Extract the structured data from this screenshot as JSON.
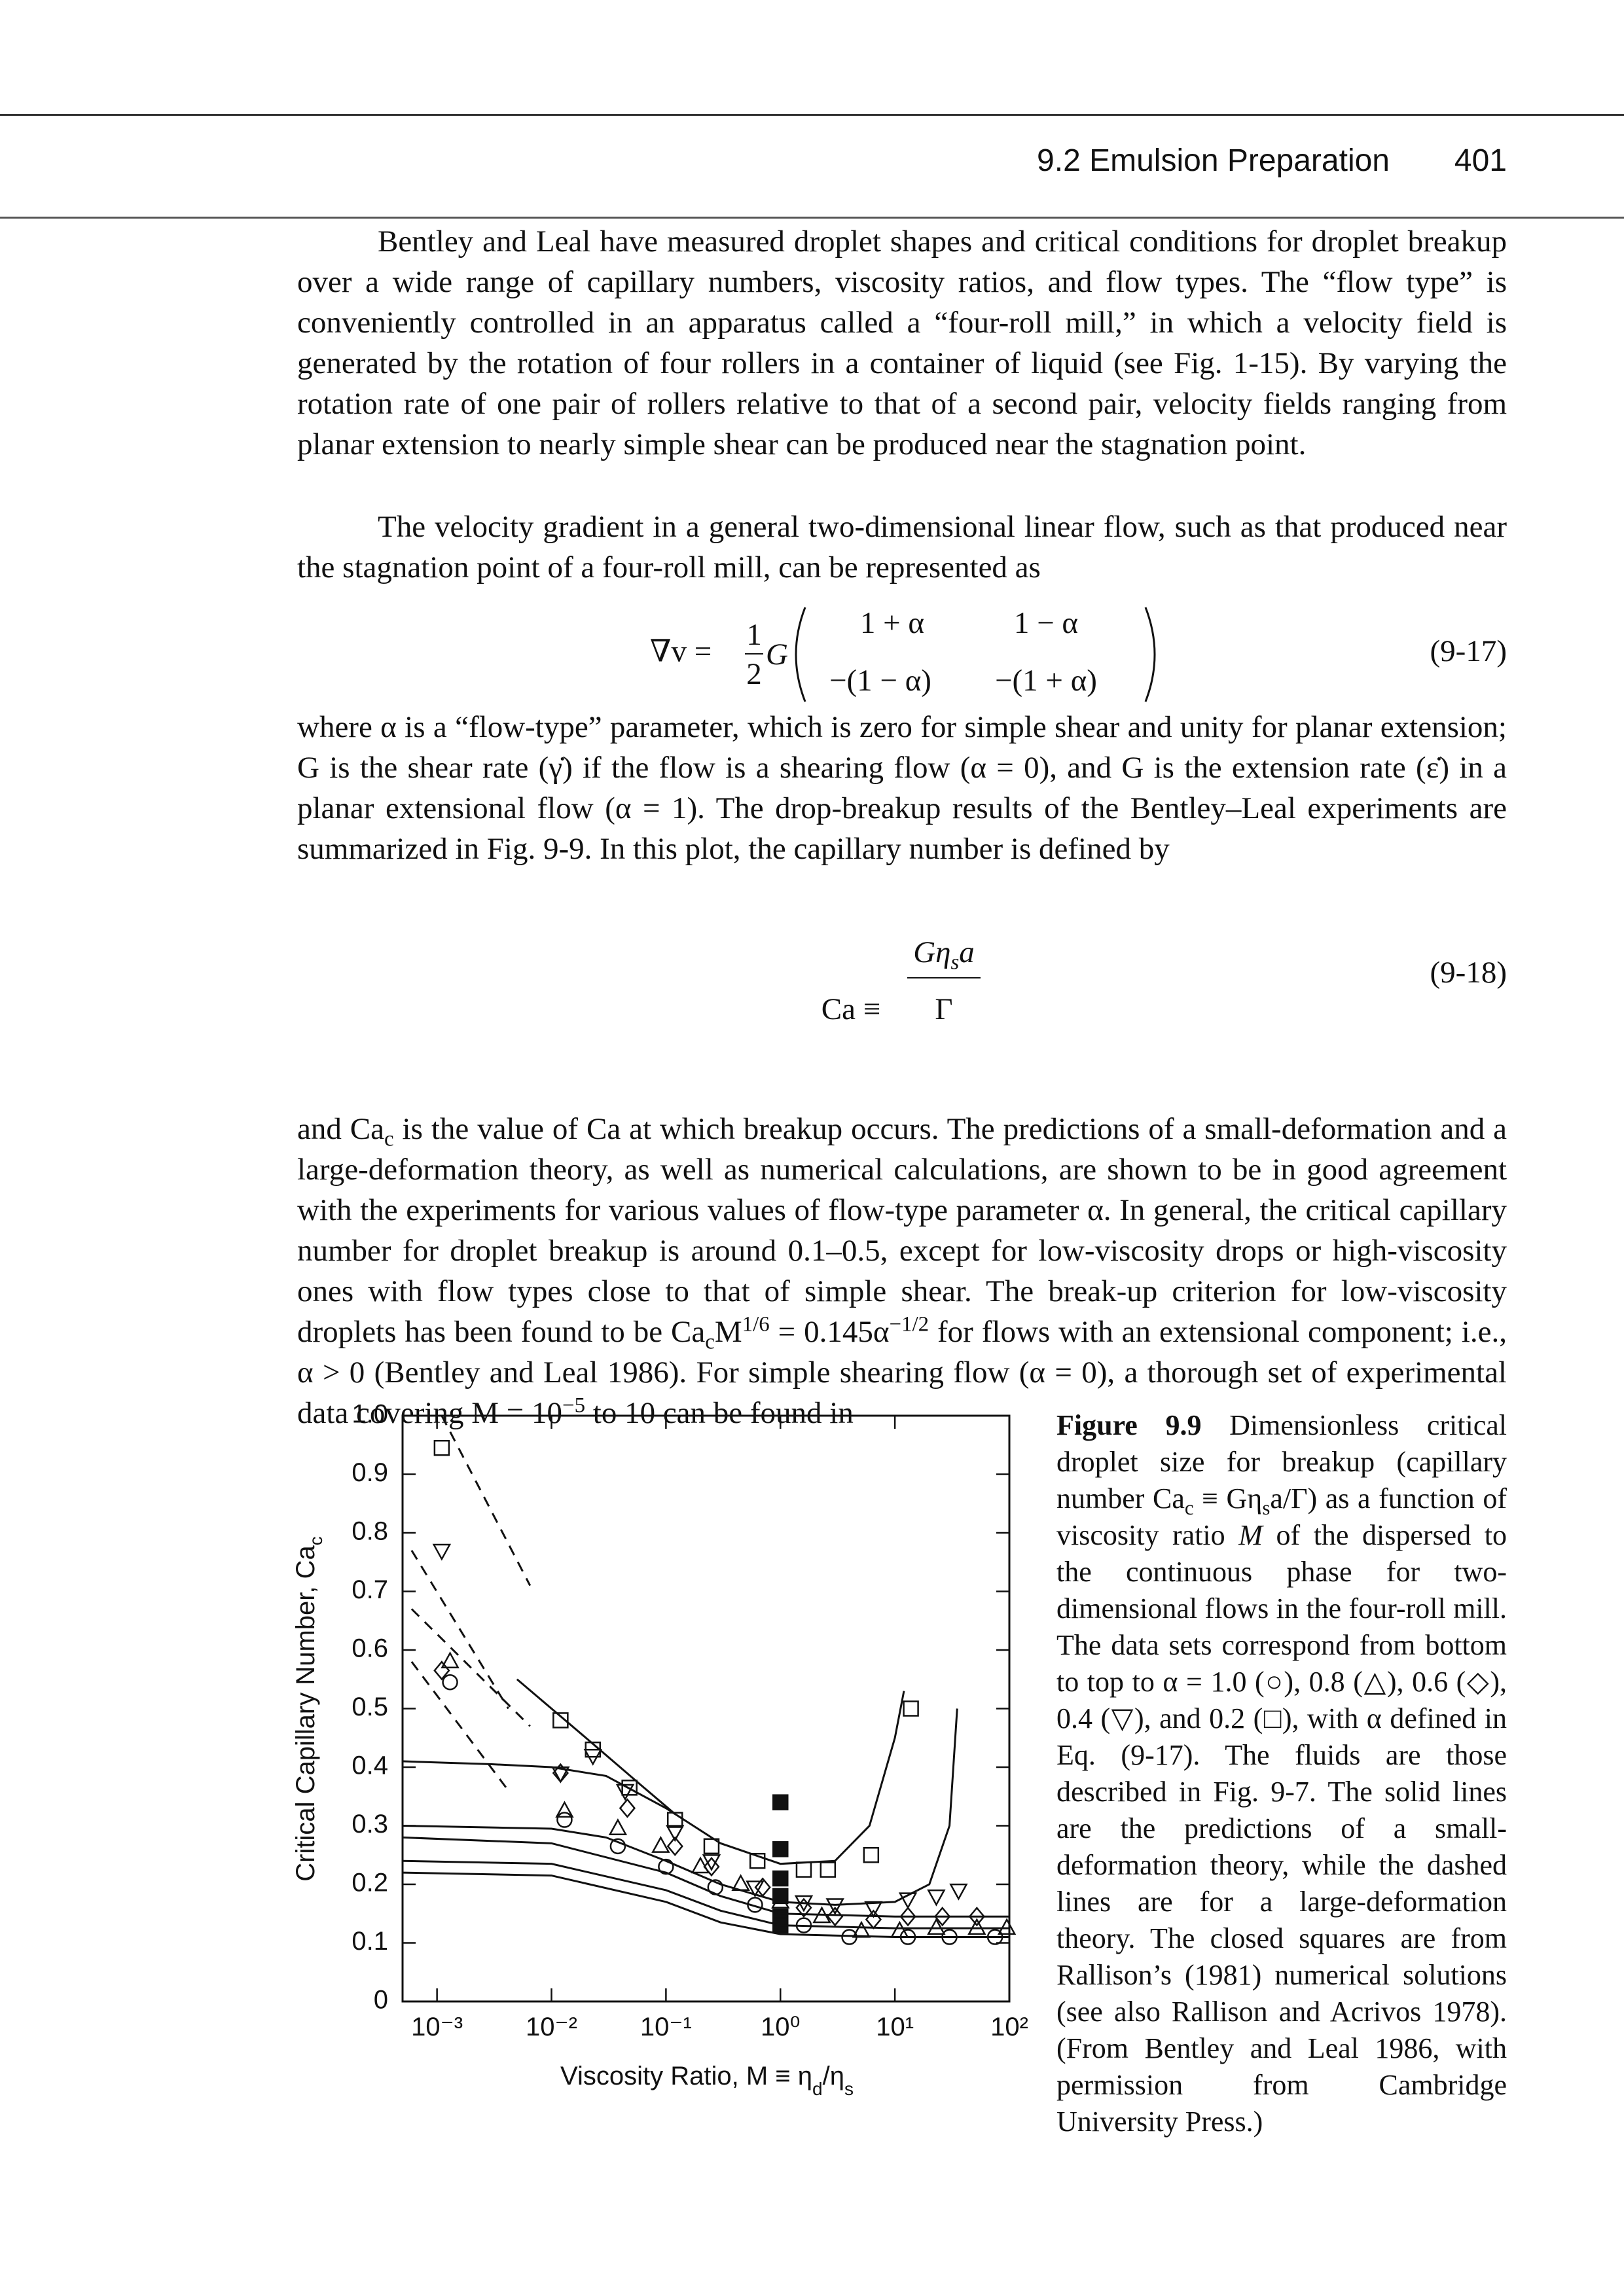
{
  "header": {
    "section": "9.2 Emulsion Preparation",
    "page": "401"
  },
  "paragraphs": [
    {
      "runs": [
        {
          "text": "Bentley and Leal have measured droplet shapes and critical conditions for droplet breakup over a wide range of capillary numbers, viscosity ratios, and flow types. The “flow type” is conveniently controlled in an apparatus called a “four-roll mill,” in which a velocity field is generated by the rotation of four rollers in a container of liquid (see Fig. 1-15). By varying the rotation rate of one pair of rollers relative to that of a second pair, velocity fields ranging from planar extension to nearly simple shear can be produced near the stagnation point."
        }
      ]
    },
    {
      "runs": [
        {
          "text": "The velocity gradient in a general two-dimensional linear flow, such as that produced near the stagnation point of a four-roll mill, can be represented as"
        }
      ]
    },
    {
      "runs": [
        {
          "text": "where α is a “flow-type” parameter, which is zero for simple shear and unity for planar extension; G is the shear rate (γ̇) if the flow is a shearing flow (α = 0), and G is the extension rate (ε̇) in a planar extensional flow (α = 1). The drop-breakup results of the Bentley–Leal experiments are summarized in Fig. 9-9. In this plot, the capillary number is defined by"
        }
      ]
    },
    {
      "runs": [
        {
          "text": "and Ca"
        },
        {
          "text": "c",
          "style": "sub"
        },
        {
          "text": " is the value of Ca at which breakup occurs. The predictions of a small-deformation and a large-deformation theory, as well as numerical calculations, are shown to be in good agreement with the experiments for various values of flow-type parameter α. In general, the critical capillary number for droplet breakup is around 0.1–0.5, except for low-viscosity drops or high-viscosity ones with flow types close to that of simple shear. The break-up criterion for low-viscosity droplets has been found to be Ca"
        },
        {
          "text": "c",
          "style": "sub"
        },
        {
          "text": "M"
        },
        {
          "text": "1/6",
          "style": "sup"
        },
        {
          "text": " = 0.145α"
        },
        {
          "text": "−1/2",
          "style": "sup"
        },
        {
          "text": " for flows with an extensional component; i.e., α > 0 (Bentley and Leal 1986). For simple shearing flow (α = 0), a thorough set of experimental data covering M = 10"
        },
        {
          "text": "−5",
          "style": "sup"
        },
        {
          "text": " to 10 can be found in"
        }
      ]
    }
  ],
  "equations": [
    {
      "lhs": "∇v =",
      "frac_num": "1",
      "frac_den": "2",
      "factor": "G",
      "matrix": [
        [
          "1 + α",
          "1 − α"
        ],
        [
          "−(1 − α)",
          "−(1 + α)"
        ]
      ],
      "number": "(9-17)"
    },
    {
      "lhs": "Ca ≡",
      "numerator": [
        {
          "text": "Gη"
        },
        {
          "text": "s",
          "style": "sub"
        },
        {
          "text": "a"
        }
      ],
      "denominator": "Γ",
      "number": "(9-18)"
    }
  ],
  "figure": {
    "chart_data": {
      "type": "scatter",
      "ylabel": [
        {
          "text": "Critical Capillary Number, Ca"
        },
        {
          "text": "c",
          "style": "sub"
        }
      ],
      "xlabel": [
        {
          "text": "Viscosity Ratio, M ≡ η"
        },
        {
          "text": "d",
          "style": "sub"
        },
        {
          "text": "/η"
        },
        {
          "text": "s",
          "style": "sub"
        }
      ],
      "xscale": "log",
      "xlim": [
        0.0005,
        100
      ],
      "xticks": [
        {
          "value": 0.001,
          "label": "10⁻³"
        },
        {
          "value": 0.01,
          "label": "10⁻²"
        },
        {
          "value": 0.1,
          "label": "10⁻¹"
        },
        {
          "value": 1,
          "label": "10⁰"
        },
        {
          "value": 10,
          "label": "10¹"
        },
        {
          "value": 100,
          "label": "10²"
        }
      ],
      "ylim": [
        0,
        1
      ],
      "yticks": [
        0,
        0.1,
        0.2,
        0.3,
        0.4,
        0.5,
        0.6,
        0.7,
        0.8,
        0.9,
        {
          "value": 1,
          "label": "1.0"
        }
      ],
      "grid": false,
      "series": [
        {
          "marker": "circle",
          "line": "none",
          "color": "#111111",
          "x": [
            0.0013,
            0.013,
            0.038,
            0.1,
            0.27,
            0.6,
            1.6,
            4,
            13,
            30,
            75
          ],
          "values": [
            0.545,
            0.31,
            0.265,
            0.23,
            0.195,
            0.165,
            0.13,
            0.11,
            0.11,
            0.11,
            0.11
          ]
        },
        {
          "marker": "triangle",
          "line": "none",
          "color": "#111111",
          "x": [
            0.0013,
            0.013,
            0.038,
            0.09,
            0.2,
            0.45,
            1,
            2.3,
            5.1,
            11,
            23,
            52,
            95
          ],
          "values": [
            0.58,
            0.325,
            0.295,
            0.265,
            0.23,
            0.2,
            0.17,
            0.145,
            0.12,
            0.12,
            0.125,
            0.125,
            0.125
          ]
        },
        {
          "marker": "diamond",
          "line": "none",
          "color": "#111111",
          "x": [
            0.0011,
            0.012,
            0.046,
            0.12,
            0.25,
            0.7,
            1.6,
            3,
            6.5,
            13,
            26,
            52
          ],
          "values": [
            0.565,
            0.39,
            0.33,
            0.265,
            0.23,
            0.195,
            0.16,
            0.145,
            0.14,
            0.145,
            0.145,
            0.145
          ]
        },
        {
          "marker": "triangle-down",
          "line": "none",
          "color": "#111111",
          "x": [
            0.0011,
            0.012,
            0.023,
            0.044,
            0.12,
            0.25,
            0.6,
            1.6,
            3,
            6.5,
            13,
            23,
            36
          ],
          "values": [
            0.77,
            0.39,
            0.42,
            0.36,
            0.29,
            0.24,
            0.195,
            0.17,
            0.165,
            0.16,
            0.175,
            0.18,
            0.19
          ]
        },
        {
          "marker": "square",
          "line": "none",
          "color": "#111111",
          "x": [
            0.0011,
            0.012,
            0.023,
            0.048,
            0.12,
            0.25,
            0.63,
            1.6,
            2.6,
            6.2,
            13.8
          ],
          "values": [
            0.945,
            0.48,
            0.43,
            0.365,
            0.31,
            0.265,
            0.24,
            0.225,
            0.225,
            0.25,
            0.5
          ]
        },
        {
          "marker": "square-filled",
          "line": "none",
          "color": "#111111",
          "x": [
            1,
            1,
            1,
            1,
            1,
            1
          ],
          "values": [
            0.34,
            0.26,
            0.21,
            0.18,
            0.145,
            0.13
          ]
        },
        {
          "marker": "none",
          "line": "solid",
          "color": "#111111",
          "x": [
            0.0005,
            0.003,
            0.01,
            0.03,
            0.1,
            0.3,
            1,
            3,
            6,
            10,
            12
          ],
          "values": [
            0.41,
            0.405,
            0.4,
            0.385,
            0.33,
            0.27,
            0.235,
            0.24,
            0.3,
            0.45,
            0.53
          ]
        },
        {
          "marker": "none",
          "line": "solid",
          "color": "#111111",
          "x": [
            0.0005,
            0.01,
            0.03,
            0.1,
            0.3,
            1,
            3,
            10,
            20,
            30,
            35
          ],
          "values": [
            0.3,
            0.295,
            0.28,
            0.24,
            0.2,
            0.17,
            0.165,
            0.17,
            0.2,
            0.3,
            0.5
          ]
        },
        {
          "marker": "none",
          "line": "solid",
          "color": "#111111",
          "x": [
            0.0005,
            0.01,
            0.1,
            0.3,
            1,
            10,
            100
          ],
          "values": [
            0.28,
            0.27,
            0.22,
            0.18,
            0.15,
            0.145,
            0.145
          ]
        },
        {
          "marker": "none",
          "line": "solid",
          "color": "#111111",
          "x": [
            0.0005,
            0.01,
            0.1,
            0.3,
            1,
            10,
            100
          ],
          "values": [
            0.24,
            0.235,
            0.19,
            0.155,
            0.13,
            0.125,
            0.125
          ]
        },
        {
          "marker": "none",
          "line": "solid",
          "color": "#111111",
          "x": [
            0.0005,
            0.01,
            0.1,
            0.3,
            1,
            10,
            100
          ],
          "values": [
            0.22,
            0.215,
            0.17,
            0.135,
            0.115,
            0.11,
            0.11
          ]
        },
        {
          "marker": "none",
          "line": "solid",
          "color": "#111111",
          "x": [
            0.005,
            0.02,
            0.06,
            0.12
          ],
          "values": [
            0.55,
            0.45,
            0.37,
            0.32
          ]
        },
        {
          "marker": "none",
          "line": "dashed",
          "color": "#111111",
          "x": [
            0.0011,
            0.0065
          ],
          "values": [
            1,
            0.71
          ]
        },
        {
          "marker": "none",
          "line": "dashed",
          "color": "#111111",
          "x": [
            0.0006,
            0.0042
          ],
          "values": [
            0.77,
            0.5
          ]
        },
        {
          "marker": "none",
          "line": "dashed",
          "color": "#111111",
          "x": [
            0.0006,
            0.0065
          ],
          "values": [
            0.67,
            0.47
          ]
        },
        {
          "marker": "none",
          "line": "dashed",
          "color": "#111111",
          "x": [
            0.0006,
            0.0042
          ],
          "values": [
            0.58,
            0.36
          ]
        }
      ]
    },
    "caption": {
      "runs": [
        {
          "text": "Figure 9.9",
          "style": "bold"
        },
        {
          "text": "  Dimensionless critical droplet size for breakup (capillary number Ca"
        },
        {
          "text": "c",
          "style": "sub"
        },
        {
          "text": " ≡ Gη"
        },
        {
          "text": "s",
          "style": "sub"
        },
        {
          "text": "a/Γ) as a function of viscosity ratio "
        },
        {
          "text": "M",
          "style": "italic"
        },
        {
          "text": " of the dispersed to the continuous phase for two-dimensional flows in the four-roll mill. The data sets correspond from bottom to top to α = 1.0 (○), 0.8 (△), 0.6 (◇), 0.4 (▽), and 0.2 (□), with α defined in Eq. (9-17). The fluids are those described in Fig. 9-7. The solid lines are the predictions of a small-deformation theory, while the dashed lines are for a large-deformation theory. The closed squares are from Rallison’s (1981) numerical solutions (see also Rallison and Acrivos 1978). (From Bentley and Leal 1986, with permission from Cambridge University Press.)"
        }
      ]
    }
  }
}
